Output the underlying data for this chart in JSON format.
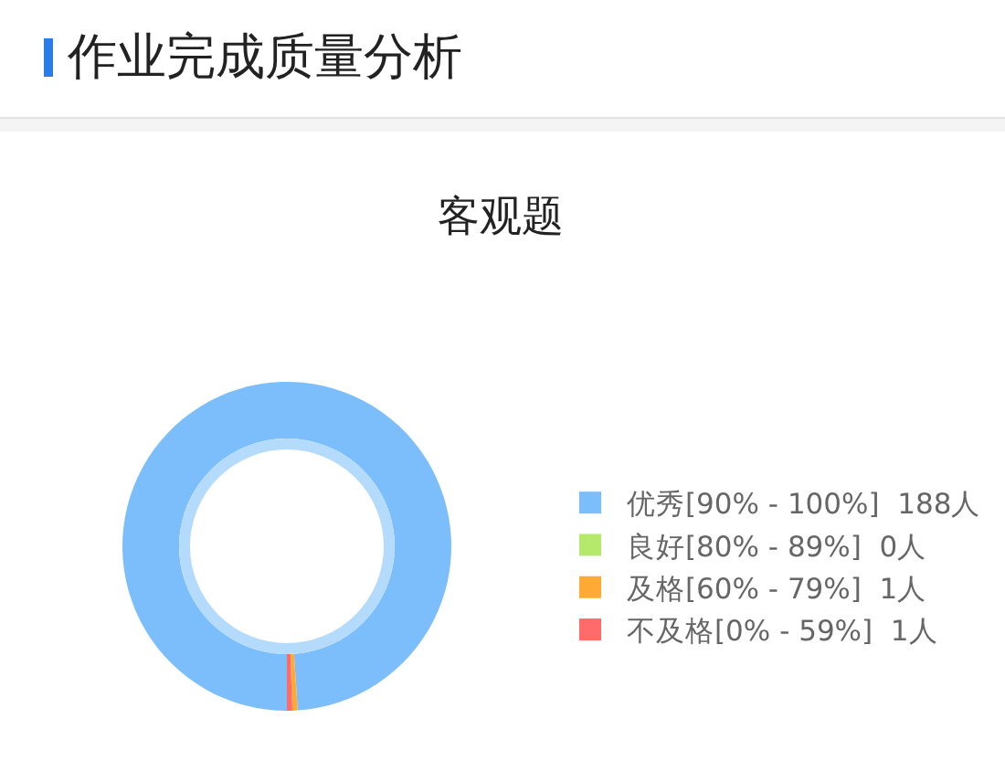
{
  "chart_data": {
    "type": "donut",
    "title": "作业完成质量分析",
    "subtitle": "客观题",
    "categories": [
      "优秀[90% - 100%]",
      "良好[80% - 89%]",
      "及格[60% - 79%]",
      "不及格[0% - 59%]"
    ],
    "values": [
      188,
      0,
      1,
      1
    ],
    "value_labels": [
      "188人",
      "0人",
      "1人",
      "1人"
    ],
    "colors": [
      "#7cbefc",
      "#b5e96c",
      "#ffaa35",
      "#ff6b6b"
    ],
    "legend": "right"
  }
}
